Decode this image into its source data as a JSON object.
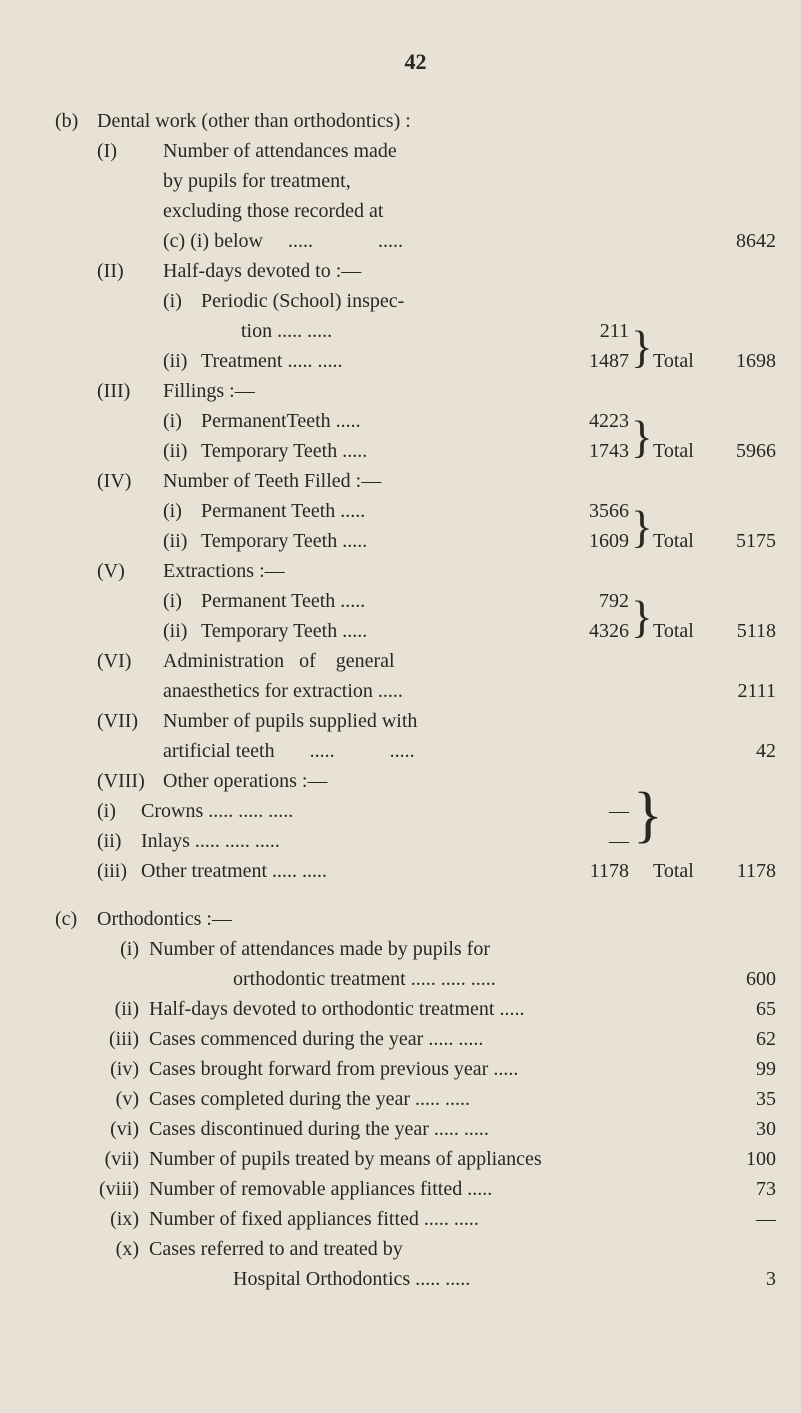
{
  "pageNumber": "42",
  "b": {
    "marker": "(b)",
    "title": "Dental work (other than orthodontics) :",
    "I": {
      "marker": "(I)",
      "text": "Number of attendances made by pupils for treatment, excluding those recorded at (c) (i) below     .....          .....",
      "value": "8642"
    },
    "II": {
      "marker": "(II)",
      "text": "Half-days devoted to :—",
      "i": {
        "marker": "(i)",
        "text": "Periodic (School) inspec-",
        "text2": "tion    .....                .....",
        "value": "211"
      },
      "ii": {
        "marker": "(ii)",
        "text": "Treatment    .....           .....",
        "value": "1487"
      },
      "totalLabel": "Total",
      "total": "1698"
    },
    "III": {
      "marker": "(III)",
      "text": "Fillings :—",
      "i": {
        "marker": "(i)",
        "text": "PermanentTeeth         .....",
        "value": "4223"
      },
      "ii": {
        "marker": "(ii)",
        "text": "Temporary Teeth        .....",
        "value": "1743"
      },
      "totalLabel": "Total",
      "total": "5966"
    },
    "IV": {
      "marker": "(IV)",
      "text": "Number of Teeth Filled :—",
      "i": {
        "marker": "(i)",
        "text": "Permanent Teeth        .....",
        "value": "3566"
      },
      "ii": {
        "marker": "(ii)",
        "text": "Temporary Teeth       .....",
        "value": "1609"
      },
      "totalLabel": "Total",
      "total": "5175"
    },
    "V": {
      "marker": "(V)",
      "text": "Extractions :—",
      "i": {
        "marker": "(i)",
        "text": "Permanent Teeth        .....",
        "value": "792"
      },
      "ii": {
        "marker": "(ii)",
        "text": "Temporary Teeth       .....",
        "value": "4326"
      },
      "totalLabel": "Total",
      "total": "5118"
    },
    "VI": {
      "marker": "(VI)",
      "text": "Administration   of    general anaesthetics for extraction .....",
      "value": "2111"
    },
    "VII": {
      "marker": "(VII)",
      "text": "Number of pupils supplied with artificial teeth       .....           .....",
      "value": "42"
    },
    "VIII": {
      "marker": "(VIII)",
      "text": "Other operations :—",
      "i": {
        "marker": "(i)",
        "text": "Crowns   .....             .....            .....",
        "value": "—"
      },
      "ii": {
        "marker": "(ii)",
        "text": "Inlays    .....             .....             .....",
        "value": "—"
      },
      "iii": {
        "marker": "(iii)",
        "text": "Other treatment   .....            .....",
        "value": "1178"
      },
      "totalLabel": "Total",
      "total": "1178"
    }
  },
  "c": {
    "marker": "(c)",
    "title": "Orthodontics :—",
    "items": [
      {
        "marker": "(i)",
        "text": "Number  of  attendances  made  by  pupils  for",
        "text2": "orthodontic treatment .....           .....             .....",
        "value": "600"
      },
      {
        "marker": "(ii)",
        "text": "Half-days devoted to orthodontic treatment  .....",
        "value": "65"
      },
      {
        "marker": "(iii)",
        "text": "Cases commenced during the year     .....           .....",
        "value": "62"
      },
      {
        "marker": "(iv)",
        "text": "Cases brought forward from previous year    .....",
        "value": "99"
      },
      {
        "marker": "(v)",
        "text": "Cases completed during the year        .....         .....",
        "value": "35"
      },
      {
        "marker": "(vi)",
        "text": "Cases discontinued during the year  .....           .....",
        "value": "30"
      },
      {
        "marker": "(vii)",
        "text": "Number of pupils treated by means of appliances",
        "value": "100"
      },
      {
        "marker": "(viii)",
        "text": "Number of removable appliances fitted          .....",
        "value": "73"
      },
      {
        "marker": "(ix)",
        "text": "Number of fixed appliances fitted     .....            .....",
        "value": "—"
      },
      {
        "marker": "(x)",
        "text": "Cases  referred  to  and  treated  by",
        "text2": "Hospital Orthodontics          .....             .....",
        "value": "3"
      }
    ]
  }
}
